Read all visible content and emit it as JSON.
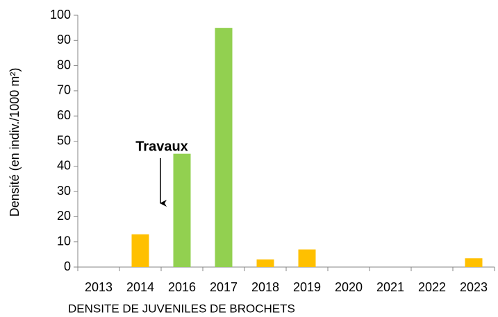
{
  "chart_data": {
    "type": "bar",
    "title": "DENSITE DE JUVENILES DE BROCHETS",
    "y_label": "Densité (en indiv./1000 m²)",
    "annotation": "Travaux",
    "categories": [
      "2013",
      "2014",
      "2016",
      "2017",
      "2018",
      "2019",
      "2020",
      "2021",
      "2022",
      "2023"
    ],
    "values": [
      0,
      13,
      45,
      95,
      3,
      7,
      0,
      0,
      0,
      3.5
    ],
    "colors": [
      "#ffc000",
      "#ffc000",
      "#92d050",
      "#92d050",
      "#ffc000",
      "#ffc000",
      "#ffc000",
      "#ffc000",
      "#ffc000",
      "#ffc000"
    ],
    "ylim": [
      0,
      100
    ],
    "yticks": [
      0,
      10,
      20,
      30,
      40,
      50,
      60,
      70,
      80,
      90,
      100
    ],
    "grid": false
  }
}
